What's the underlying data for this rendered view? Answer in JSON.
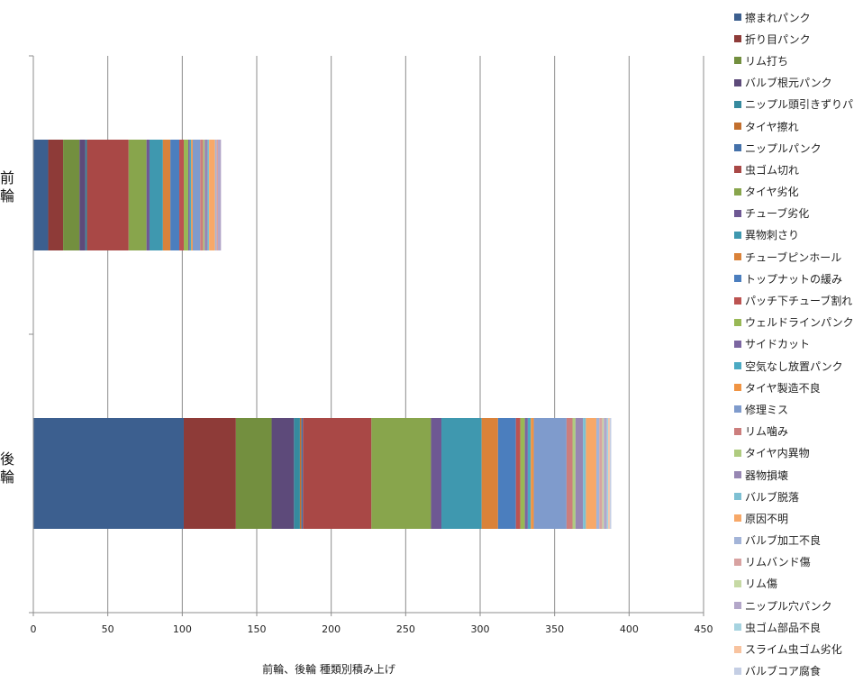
{
  "chart_data": {
    "type": "bar",
    "orientation": "horizontal",
    "stacked": true,
    "categories": [
      "前輪",
      "後輪"
    ],
    "xlabel": "前輪、後輪  種類別積み上げ",
    "xlim": [
      0,
      450
    ],
    "xticks": [
      0,
      50,
      100,
      150,
      200,
      250,
      300,
      350,
      400,
      450
    ],
    "grid": "vertical",
    "legend_position": "right",
    "series": [
      {
        "name": "擦まれパンク",
        "color": "#3C5F8F",
        "values": [
          10,
          101
        ]
      },
      {
        "name": "折り目パンク",
        "color": "#8E3B38",
        "values": [
          10,
          35
        ]
      },
      {
        "name": "リム打ち",
        "color": "#738F3F",
        "values": [
          11,
          24
        ]
      },
      {
        "name": "バルブ根元パンク",
        "color": "#5D4A7A",
        "values": [
          4,
          15
        ]
      },
      {
        "name": "ニップル頭引きずりパンク",
        "color": "#368A9E",
        "values": [
          1,
          4
        ]
      },
      {
        "name": "タイヤ擦れ",
        "color": "#C26F2E",
        "values": [
          0,
          1
        ]
      },
      {
        "name": "ニップルパンク",
        "color": "#4471AA",
        "values": [
          0,
          1
        ]
      },
      {
        "name": "虫ゴム切れ",
        "color": "#A94846",
        "values": [
          28,
          46
        ]
      },
      {
        "name": "タイヤ劣化",
        "color": "#88A54C",
        "values": [
          12,
          40
        ]
      },
      {
        "name": "チューブ劣化",
        "color": "#6E5893",
        "values": [
          2,
          7
        ]
      },
      {
        "name": "異物刺さり",
        "color": "#3F98AF",
        "values": [
          9,
          27
        ]
      },
      {
        "name": "チューブピンホール",
        "color": "#DA8239",
        "values": [
          5,
          11
        ]
      },
      {
        "name": "トップナットの緩み",
        "color": "#4B7EBE",
        "values": [
          6,
          12
        ]
      },
      {
        "name": "パッチ下チューブ割れ",
        "color": "#BC5351",
        "values": [
          3,
          3
        ]
      },
      {
        "name": "ウェルドラインパンク",
        "color": "#98B855",
        "values": [
          3,
          3
        ]
      },
      {
        "name": "サイドカット",
        "color": "#7C66A1",
        "values": [
          1,
          2
        ]
      },
      {
        "name": "空気なし放置パンク",
        "color": "#4BAAC3",
        "values": [
          1,
          2
        ]
      },
      {
        "name": "タイヤ製造不良",
        "color": "#F09443",
        "values": [
          1,
          2
        ]
      },
      {
        "name": "修理ミス",
        "color": "#7F9BCC",
        "values": [
          5,
          22
        ]
      },
      {
        "name": "リム噛み",
        "color": "#CC7E7D",
        "values": [
          2,
          4
        ]
      },
      {
        "name": "タイヤ内異物",
        "color": "#AFCB7F",
        "values": [
          1,
          2
        ]
      },
      {
        "name": "器物損壊",
        "color": "#9787B3",
        "values": [
          2,
          5
        ]
      },
      {
        "name": "バルブ脱落",
        "color": "#7EC0D3",
        "values": [
          1,
          2
        ]
      },
      {
        "name": "原因不明",
        "color": "#F7A868",
        "values": [
          4,
          7
        ]
      },
      {
        "name": "バルブ加工不良",
        "color": "#A3B4D8",
        "values": [
          1,
          2
        ]
      },
      {
        "name": "リムバンド傷",
        "color": "#D8A2A1",
        "values": [
          1,
          2
        ]
      },
      {
        "name": "リム傷",
        "color": "#C6D9A4",
        "values": [
          0,
          1
        ]
      },
      {
        "name": "ニップル穴パンク",
        "color": "#B3A7C9",
        "values": [
          2,
          2
        ]
      },
      {
        "name": "虫ゴム部品不良",
        "color": "#A6D3E0",
        "values": [
          0,
          1
        ]
      },
      {
        "name": "スライム虫ゴム劣化",
        "color": "#F8C39F",
        "values": [
          0,
          1
        ]
      },
      {
        "name": "バルブコア腐食",
        "color": "#C4CEE4",
        "values": [
          0,
          1
        ]
      }
    ]
  }
}
